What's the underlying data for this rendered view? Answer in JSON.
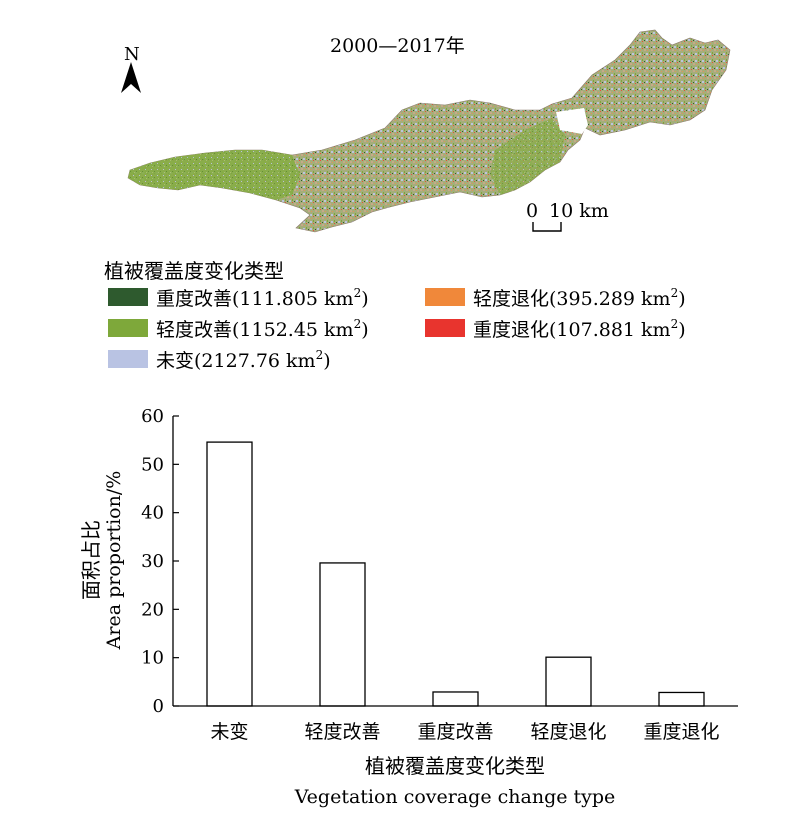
{
  "map": {
    "title": "2000—2017年",
    "north_label": "N",
    "scale_label_zero": "0",
    "scale_label_distance": "10 km"
  },
  "legend": {
    "title": "植被覆盖度变化类型",
    "items": [
      {
        "label": "重度改善",
        "area": "(111.805 km",
        "sup": "2",
        "close": ")",
        "color": "#2e5a2e"
      },
      {
        "label": "轻度退化",
        "area": "(395.289 km",
        "sup": "2",
        "close": ")",
        "color": "#f0883a"
      },
      {
        "label": "轻度改善",
        "area": "(1152.45 km",
        "sup": "2",
        "close": ")",
        "color": "#7ea83a"
      },
      {
        "label": "重度退化",
        "area": "(107.881 km",
        "sup": "2",
        "close": ")",
        "color": "#e8342e"
      },
      {
        "label": "未变",
        "area": "(2127.76 km",
        "sup": "2",
        "close": ")",
        "color": "#b9c3e3"
      }
    ]
  },
  "chart_data": {
    "type": "bar",
    "categories": [
      "未变",
      "轻度改善",
      "重度改善",
      "轻度退化",
      "重度退化"
    ],
    "values": [
      54.6,
      29.6,
      2.9,
      10.1,
      2.8
    ],
    "ylim": [
      0,
      60
    ],
    "yticks": [
      0,
      10,
      20,
      30,
      40,
      50,
      60
    ],
    "ylabel_cn": "面积占比",
    "ylabel_en": "Area proportion/%",
    "xlabel_cn": "植被覆盖度变化类型",
    "xlabel_en": "Vegetation coverage change type",
    "bar_fill": "#ffffff",
    "bar_stroke": "#000000",
    "grid": false
  }
}
